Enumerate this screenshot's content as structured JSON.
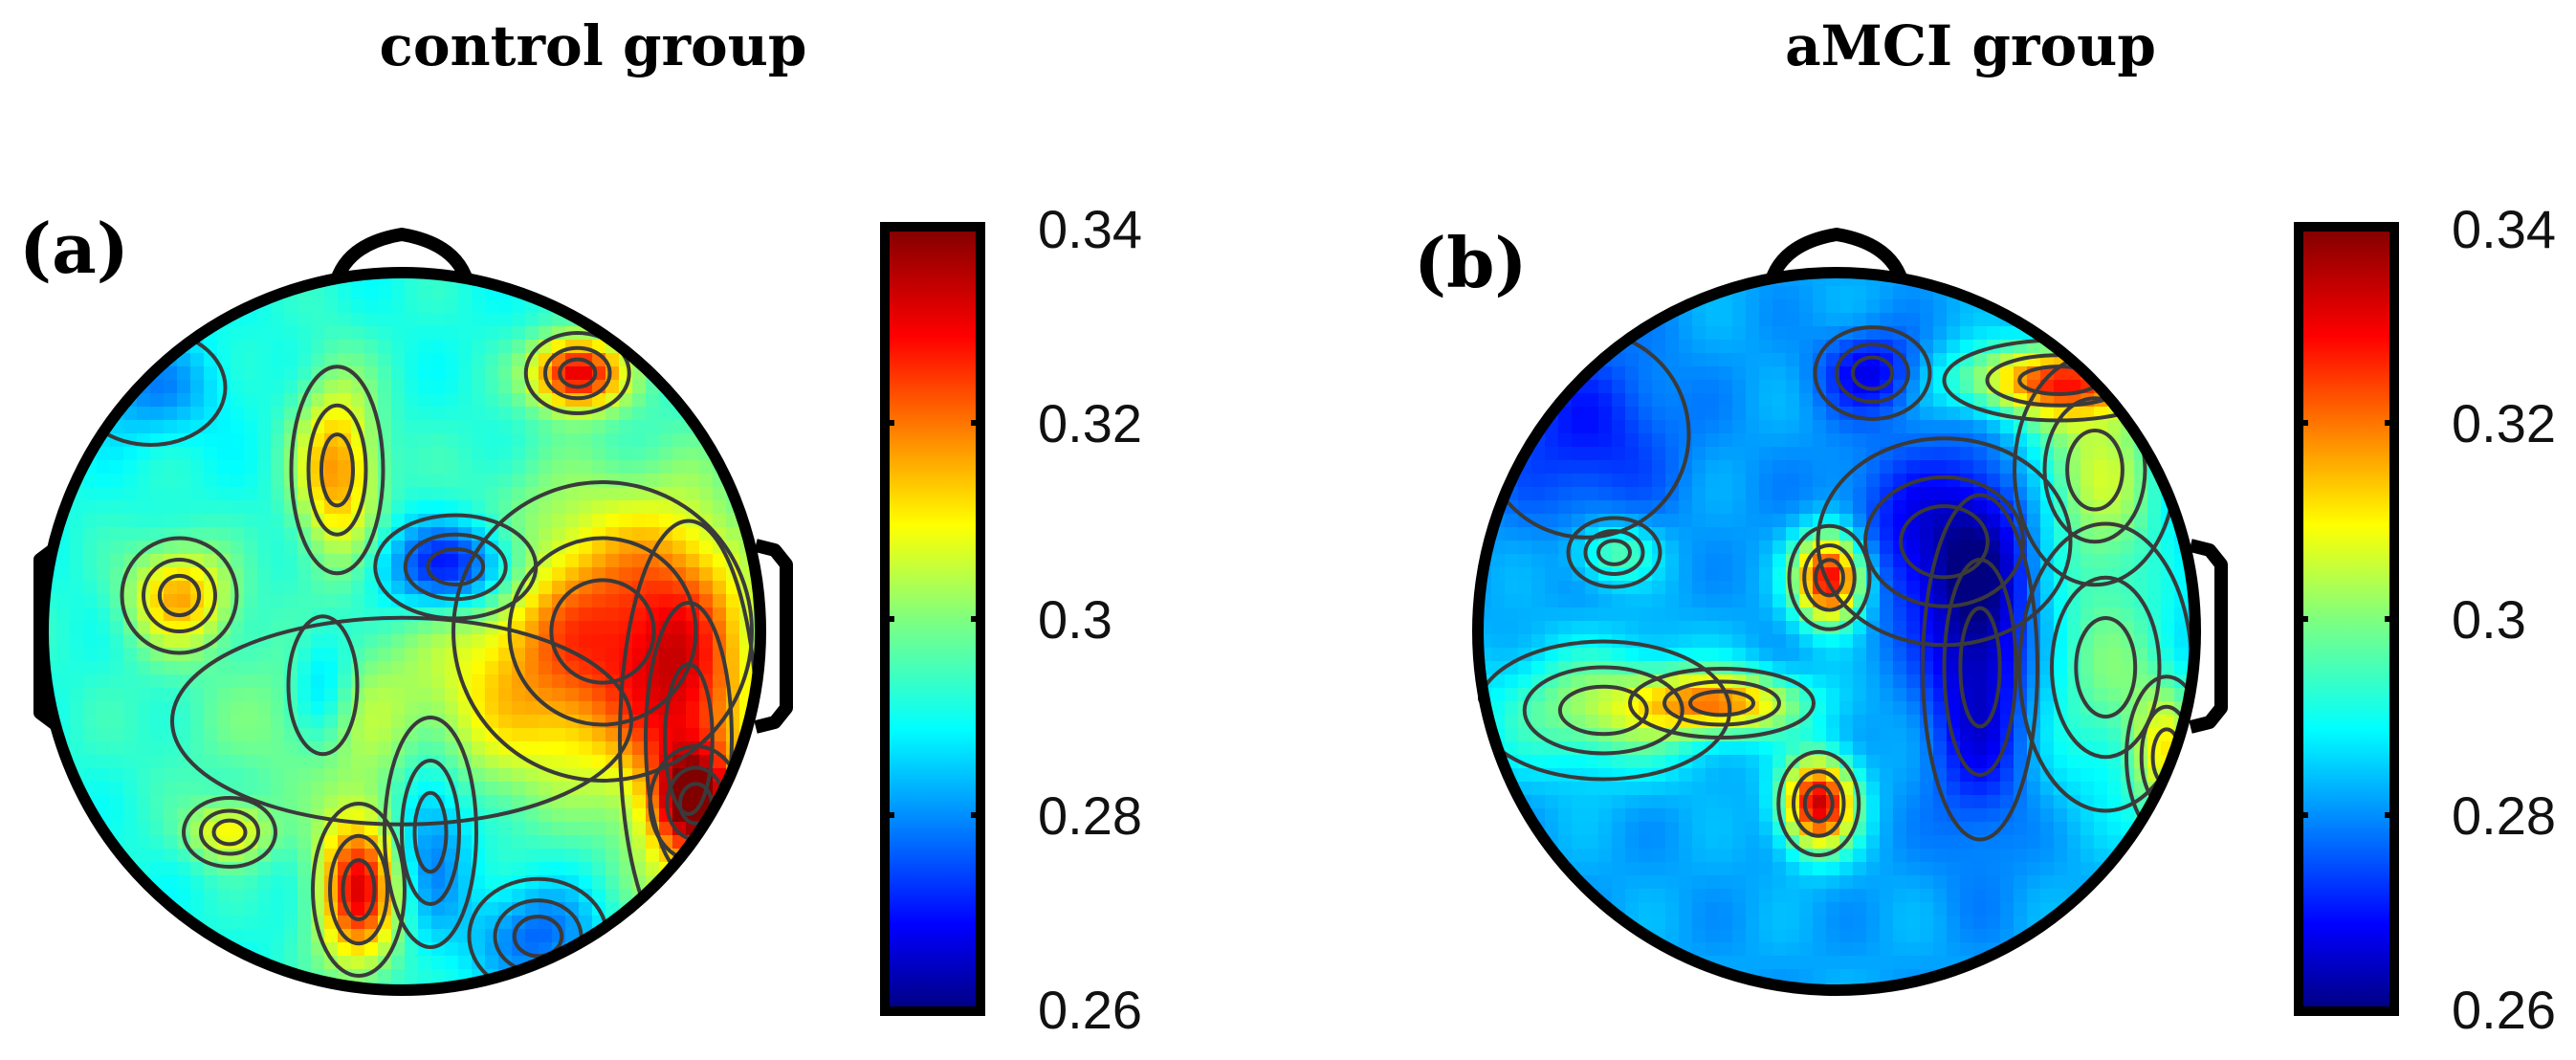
{
  "chart_data": [
    {
      "type": "heatmap",
      "panel_label": "(a)",
      "title": "control group",
      "colorbar": {
        "min": 0.26,
        "max": 0.34,
        "ticks": [
          "0.34",
          "0.32",
          "0.3",
          "0.28",
          "0.26"
        ],
        "colormap": "jet"
      },
      "regions": [
        {
          "value": 0.333,
          "u": 0.49,
          "v": -0.72,
          "su": 0.09,
          "sv": 0.07
        },
        {
          "value": 0.318,
          "u": -0.18,
          "v": -0.45,
          "su": 0.08,
          "sv": 0.18
        },
        {
          "value": 0.316,
          "u": -0.62,
          "v": -0.1,
          "su": 0.1,
          "sv": 0.1
        },
        {
          "value": 0.324,
          "u": 0.56,
          "v": 0.0,
          "su": 0.26,
          "sv": 0.26
        },
        {
          "value": 0.315,
          "u": 0.8,
          "v": 0.3,
          "su": 0.12,
          "sv": 0.38
        },
        {
          "value": 0.322,
          "u": 0.82,
          "v": 0.48,
          "su": 0.08,
          "sv": 0.1
        },
        {
          "value": 0.266,
          "u": 0.15,
          "v": -0.18,
          "su": 0.14,
          "sv": 0.09
        },
        {
          "value": 0.331,
          "u": -0.12,
          "v": 0.72,
          "su": 0.08,
          "sv": 0.15
        },
        {
          "value": 0.31,
          "u": -0.48,
          "v": 0.56,
          "su": 0.08,
          "sv": 0.06
        },
        {
          "value": 0.278,
          "u": 0.08,
          "v": 0.56,
          "su": 0.08,
          "sv": 0.2
        },
        {
          "value": 0.281,
          "u": -0.22,
          "v": 0.15,
          "su": 0.06,
          "sv": 0.12
        },
        {
          "value": 0.278,
          "u": 0.38,
          "v": 0.85,
          "su": 0.12,
          "sv": 0.1
        },
        {
          "value": 0.281,
          "u": -0.7,
          "v": -0.68,
          "su": 0.13,
          "sv": 0.1
        },
        {
          "value": 0.303,
          "u": 0.0,
          "v": 0.25,
          "su": 0.4,
          "sv": 0.18
        }
      ],
      "base_value": 0.292
    },
    {
      "type": "heatmap",
      "panel_label": "(b)",
      "title": "aMCI group",
      "colorbar": {
        "min": 0.26,
        "max": 0.34,
        "ticks": [
          "0.34",
          "0.32",
          "0.3",
          "0.28",
          "0.26"
        ],
        "colormap": "jet"
      },
      "regions": [
        {
          "value": 0.32,
          "u": 0.62,
          "v": -0.7,
          "su": 0.2,
          "sv": 0.07
        },
        {
          "value": 0.305,
          "u": 0.72,
          "v": -0.45,
          "su": 0.14,
          "sv": 0.2
        },
        {
          "value": 0.268,
          "u": 0.1,
          "v": -0.72,
          "su": 0.1,
          "sv": 0.08
        },
        {
          "value": 0.336,
          "u": -0.02,
          "v": -0.15,
          "su": 0.07,
          "sv": 0.09
        },
        {
          "value": 0.334,
          "u": -0.05,
          "v": 0.48,
          "su": 0.07,
          "sv": 0.09
        },
        {
          "value": 0.315,
          "u": -0.32,
          "v": 0.2,
          "su": 0.16,
          "sv": 0.06
        },
        {
          "value": 0.302,
          "u": -0.65,
          "v": 0.22,
          "su": 0.22,
          "sv": 0.12
        },
        {
          "value": 0.298,
          "u": 0.75,
          "v": 0.1,
          "su": 0.15,
          "sv": 0.25
        },
        {
          "value": 0.305,
          "u": 0.92,
          "v": 0.35,
          "su": 0.07,
          "sv": 0.14
        },
        {
          "value": 0.264,
          "u": 0.4,
          "v": 0.1,
          "su": 0.1,
          "sv": 0.3
        },
        {
          "value": 0.268,
          "u": 0.3,
          "v": -0.25,
          "su": 0.22,
          "sv": 0.18
        },
        {
          "value": 0.298,
          "u": -0.62,
          "v": -0.22,
          "su": 0.08,
          "sv": 0.06
        },
        {
          "value": 0.272,
          "u": -0.7,
          "v": -0.55,
          "su": 0.18,
          "sv": 0.18
        }
      ],
      "base_value": 0.283
    }
  ]
}
